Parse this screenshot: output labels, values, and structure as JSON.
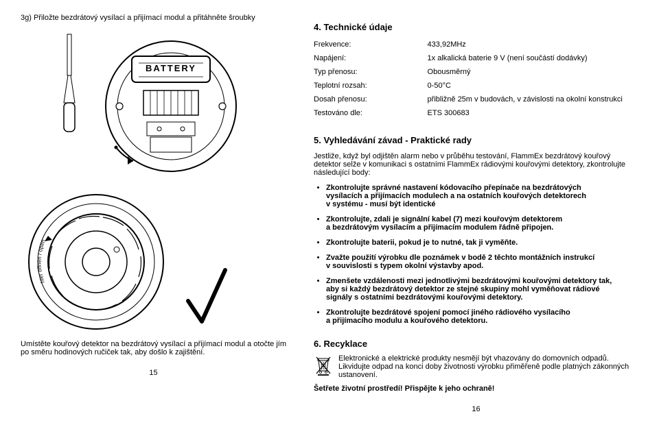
{
  "left": {
    "step_title": "3g) Přiložte bezdrátový vysílací a přijímací modul a přitáhněte šroubky",
    "caption": "Umístěte kouřový detektor na bezdrátový vysílací a přijímací modul a otočte jím po směru hodinových ručiček tak,  aby došlo k zajištění.",
    "page_num": "15"
  },
  "right": {
    "tech_heading": "4. Technické údaje",
    "specs": {
      "rows": [
        {
          "label": "Frekvence:",
          "value": "433,92MHz"
        },
        {
          "label": "Napájení:",
          "value": "1x alkalická baterie 9 V (není součástí dodávky)"
        },
        {
          "label": "Typ přenosu:",
          "value": "Obousměrný"
        },
        {
          "label": "Teplotní rozsah:",
          "value": "0-50°C"
        },
        {
          "label": "Dosah přenosu:",
          "value": "přibližně 25m v budovách, v závislosti na okolní konstrukci"
        },
        {
          "label": "Testováno dle:",
          "value": "ETS 300683"
        }
      ]
    },
    "troubleshoot_heading": "5. Vyhledávání závad - Praktické rady",
    "troubleshoot_intro": "Jestliže, když byl odjištěn alarm nebo v průběhu testování, FlammEx bezdrátový kouřový detektor selže v komunikaci s ostatními FlammEx rádiovými kouřovými detektory, zkontrolujte následující body:",
    "troubleshoot_items": [
      {
        "line1": "Zkontrolujte správné nastavení kódovacího přepínače na bezdrátových",
        "line2": "vysílacích  a přijímacích modulech a na ostatních kouřových detektorech",
        "line3": "v systému - musí být identické"
      },
      {
        "line1": "Zkontrolujte, zdali je signální kabel (7) mezi kouřovým detektorem",
        "line2": "a bezdrátovým vysílacím a přijímacím modulem řádně připojen."
      },
      {
        "line1": "Zkontrolujte baterii, pokud je to nutné, tak ji vyměňte."
      },
      {
        "line1": "Zvažte použití výrobku dle poznámek v bodě 2 těchto montážních instrukcí",
        "line2": "v souvislosti s typem okolní výstavby apod."
      },
      {
        "line1": "Zmenšete vzdálenosti mezi jednotlivými bezdrátovými kouřovými detektory tak,",
        "line2": "aby si každý bezdrátový detektor ze stejné skupiny mohl vyměňovat rádiové",
        "line3": "signály s ostatními bezdrátovými kouřovými detektory."
      },
      {
        "line1": "Zkontrolujte bezdrátové spojení pomocí jiného rádiového vysílacího",
        "line2": "a přijímacího modulu a kouřového detektoru."
      }
    ],
    "recycling_heading": "6. Recyklace",
    "recycling_text": "Elektronické a elektrické produkty nesmějí být vhazovány do domovních odpadů. Likvidujte odpad na konci doby životnosti výrobku přiměřeně podle platných zákonných ustanovení.",
    "recycling_bold": "Šetřete životní prostředí! Přispějte k jeho ochraně!",
    "page_num": "16"
  }
}
